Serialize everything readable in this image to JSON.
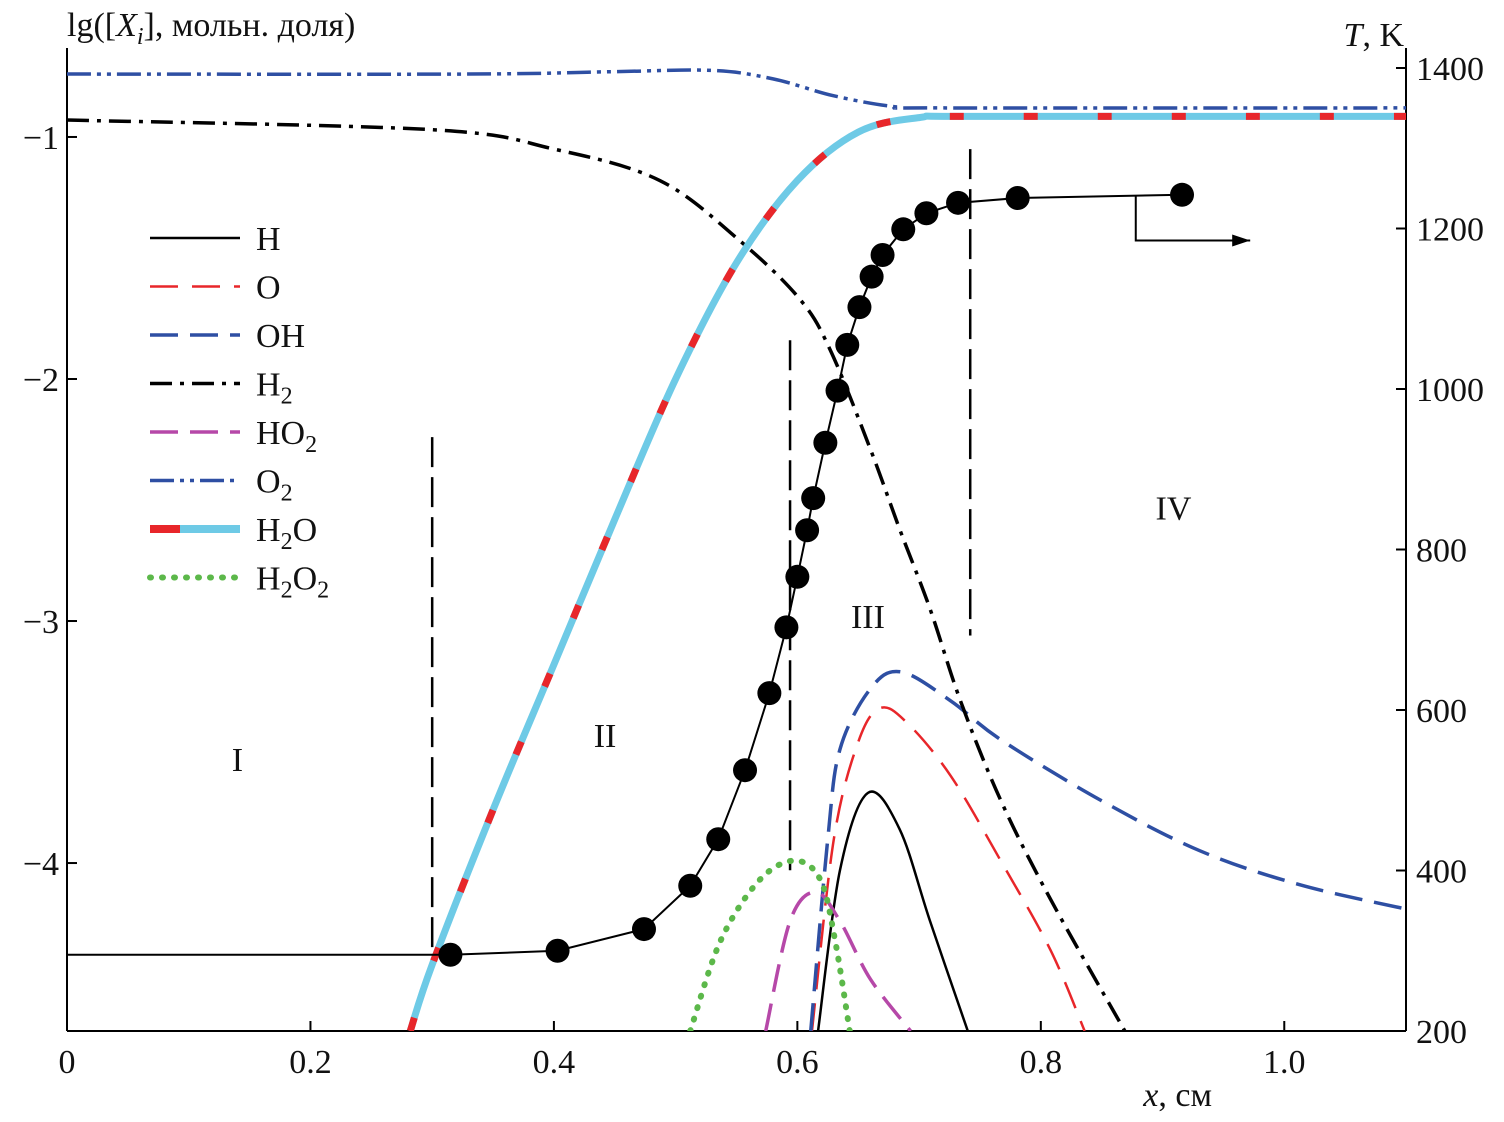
{
  "chart_data": {
    "type": "line",
    "ylabel_left": {
      "pre": "lg([",
      "var": "X",
      "sub": "i",
      "post": "], мольн. доля)"
    },
    "ylabel_right": {
      "var": "T",
      "post": ", K"
    },
    "xlabel": {
      "var": "x",
      "post": ", см"
    },
    "xlim": [
      0,
      1.1
    ],
    "ylim_left": [
      -4.694,
      -0.715
    ],
    "ylim_right": [
      200,
      1400
    ],
    "xticks": [
      {
        "v": 0,
        "l": "0"
      },
      {
        "v": 0.2,
        "l": "0.2"
      },
      {
        "v": 0.4,
        "l": "0.4"
      },
      {
        "v": 0.6,
        "l": "0.6"
      },
      {
        "v": 0.8,
        "l": "0.8"
      },
      {
        "v": 1.0,
        "l": "1.0"
      }
    ],
    "yticks_left": [
      {
        "v": -1,
        "l": "−1"
      },
      {
        "v": -2,
        "l": "−2"
      },
      {
        "v": -3,
        "l": "−3"
      },
      {
        "v": -4,
        "l": "−4"
      }
    ],
    "yticks_right": [
      {
        "v": 1400,
        "l": "1400"
      },
      {
        "v": 1200,
        "l": "1200"
      },
      {
        "v": 1000,
        "l": "1000"
      },
      {
        "v": 800,
        "l": "800"
      },
      {
        "v": 600,
        "l": "600"
      },
      {
        "v": 400,
        "l": "400"
      },
      {
        "v": 200,
        "l": "200"
      }
    ],
    "series": [
      {
        "name": "H",
        "base": "H",
        "sub": "",
        "tail": "",
        "color": "#000000",
        "dash": "none",
        "width": 2.5,
        "axis": "left",
        "x": [
          0.617,
          0.635,
          0.658,
          0.684,
          0.709,
          0.74
        ],
        "y": [
          -4.694,
          -4.03,
          -3.71,
          -3.86,
          -4.24,
          -4.694
        ]
      },
      {
        "name": "O",
        "base": "O",
        "sub": "",
        "tail": "",
        "color": "#e8262a",
        "dash": "28 14",
        "width": 2.5,
        "axis": "left",
        "x": [
          0.612,
          0.63,
          0.65,
          0.668,
          0.69,
          0.726,
          0.767,
          0.808,
          0.836
        ],
        "y": [
          -4.694,
          -3.9,
          -3.5,
          -3.36,
          -3.42,
          -3.64,
          -3.99,
          -4.36,
          -4.694
        ]
      },
      {
        "name": "OH",
        "base": "OH",
        "sub": "",
        "tail": "",
        "color": "#2e4fa3",
        "dash": "28 12",
        "width": 3.5,
        "axis": "left",
        "x": [
          0.611,
          0.625,
          0.635,
          0.66,
          0.685,
          0.726,
          0.767,
          0.849,
          0.931,
          1.013,
          1.1
        ],
        "y": [
          -4.694,
          -3.9,
          -3.53,
          -3.28,
          -3.21,
          -3.33,
          -3.49,
          -3.74,
          -3.95,
          -4.09,
          -4.19
        ]
      },
      {
        "name": "H2",
        "base": "H",
        "sub": "2",
        "tail": "",
        "color": "#000000",
        "dash": "22 8 4 8",
        "width": 3.5,
        "axis": "left",
        "x": [
          0,
          0.3,
          0.4,
          0.487,
          0.553,
          0.602,
          0.627,
          0.66,
          0.684,
          0.709,
          0.734,
          0.767,
          0.808,
          0.869
        ],
        "y": [
          -0.93,
          -0.97,
          -1.05,
          -1.18,
          -1.43,
          -1.67,
          -1.88,
          -2.29,
          -2.62,
          -2.95,
          -3.33,
          -3.74,
          -4.15,
          -4.694
        ]
      },
      {
        "name": "HO2",
        "base": "HO",
        "sub": "2",
        "tail": "",
        "color": "#b648a8",
        "dash": "28 12",
        "width": 3.5,
        "axis": "left",
        "x": [
          0.574,
          0.594,
          0.615,
          0.635,
          0.66,
          0.693
        ],
        "y": [
          -4.694,
          -4.24,
          -4.12,
          -4.24,
          -4.48,
          -4.694
        ]
      },
      {
        "name": "O2",
        "base": "O",
        "sub": "2",
        "tail": "",
        "color": "#2e4fa3",
        "dash": "24 6 4 6 4 6",
        "width": 3.5,
        "axis": "left",
        "x": [
          0,
          0.33,
          0.45,
          0.53,
          0.58,
          0.63,
          0.68,
          0.72,
          1.1
        ],
        "y": [
          -0.74,
          -0.74,
          -0.73,
          -0.725,
          -0.76,
          -0.83,
          -0.875,
          -0.88,
          -0.88
        ]
      },
      {
        "name": "H2O",
        "base": "H",
        "sub": "2",
        "tail": "O",
        "color": "#6ecae6",
        "color2": "#e8262a",
        "dash": "none",
        "width": 7,
        "axis": "left",
        "x": [
          0.282,
          0.3,
          0.35,
          0.4,
          0.45,
          0.5,
          0.55,
          0.6,
          0.65,
          0.7,
          0.75,
          1.1
        ],
        "y": [
          -4.694,
          -4.42,
          -3.78,
          -3.18,
          -2.58,
          -2.0,
          -1.52,
          -1.18,
          -0.98,
          -0.92,
          -0.915,
          -0.915
        ]
      },
      {
        "name": "H2O2",
        "base": "H",
        "sub": "2",
        "tail": "O",
        "sub2": "2",
        "color": "#5cb84a",
        "dash": "1 11",
        "width": 6,
        "axis": "left",
        "x": [
          0.512,
          0.537,
          0.569,
          0.598,
          0.619,
          0.631,
          0.643
        ],
        "y": [
          -4.694,
          -4.32,
          -4.07,
          -3.99,
          -4.07,
          -4.32,
          -4.694
        ]
      }
    ],
    "temperature": {
      "name": "T",
      "axis": "right",
      "color": "#000000",
      "x": [
        0,
        0.315,
        0.403,
        0.474,
        0.512,
        0.535,
        0.557,
        0.577,
        0.591,
        0.6,
        0.608,
        0.613,
        0.623,
        0.633,
        0.641,
        0.651,
        0.661,
        0.67,
        0.687,
        0.706,
        0.732,
        0.781,
        0.916
      ],
      "y": [
        295,
        295,
        300,
        327,
        381,
        439,
        525,
        621,
        703,
        766,
        824,
        864,
        933,
        998,
        1055,
        1102,
        1140,
        1167,
        1199,
        1219,
        1232,
        1238,
        1242
      ],
      "markers_from_index": 1
    },
    "zone_boundaries": [
      {
        "x": 0.3,
        "y": [
          -2.24,
          -4.38
        ]
      },
      {
        "x": 0.594,
        "y": [
          -1.84,
          -4.03
        ]
      },
      {
        "x": 0.742,
        "y": [
          -1.05,
          -3.06
        ]
      }
    ],
    "zones": [
      {
        "label": "I",
        "x": 0.14,
        "y": -3.57
      },
      {
        "label": "II",
        "x": 0.442,
        "y": -3.47
      },
      {
        "label": "III",
        "x": 0.658,
        "y": -2.98
      },
      {
        "label": "IV",
        "x": 0.909,
        "y": -2.53
      }
    ],
    "arrow": {
      "x0": 0.878,
      "x1": 0.972,
      "T_start": 1240,
      "T_end": 1185
    },
    "legend_placement": "left-middle"
  }
}
